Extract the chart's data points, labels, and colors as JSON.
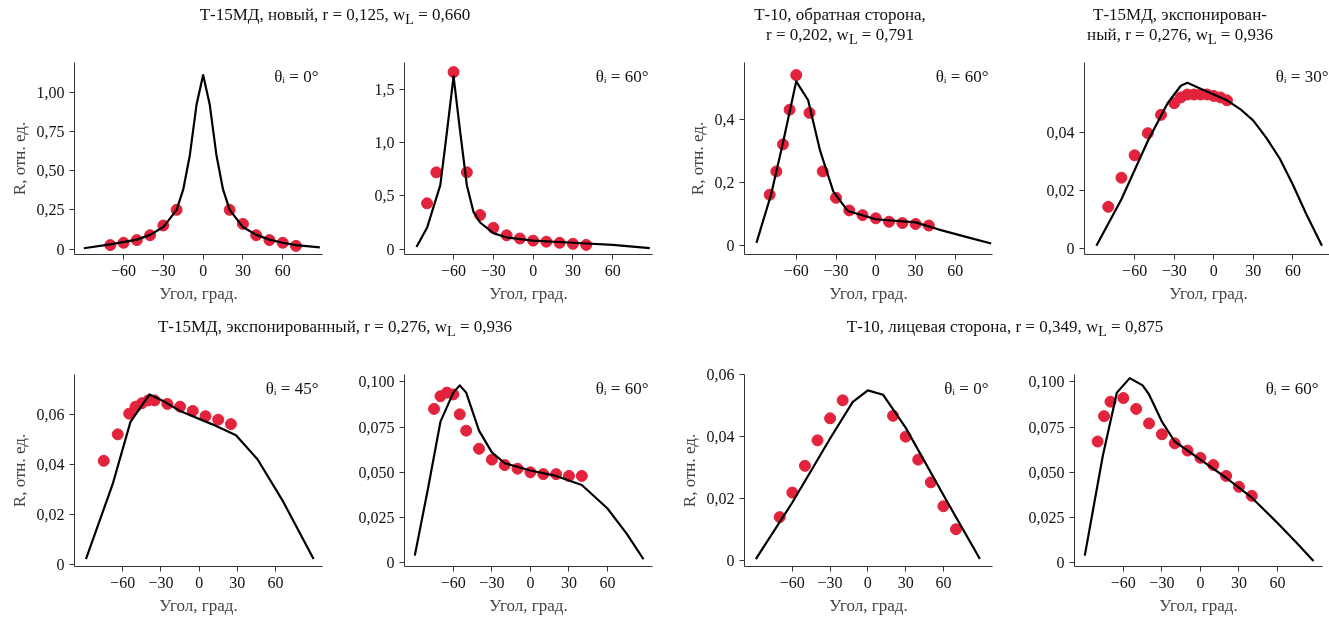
{
  "chart_data": [
    {
      "type": "scatter",
      "title": "Т-15МД, новый, r = 0,125, w$_{L}$ = 0,660",
      "xlabel": "Угол, град.",
      "ylabel": "R, отн. ед.",
      "annotations": [
        "θᵢ = 0°"
      ],
      "marker": "circle",
      "xlim": [
        -97,
        90
      ],
      "ylim": [
        -0.035,
        1.19
      ],
      "xticks": [
        -60,
        -30,
        0,
        30,
        60
      ],
      "yticks": [
        {
          "value": 0,
          "label": "0"
        },
        {
          "value": 0.25,
          "label": "0,25"
        },
        {
          "value": 0.5,
          "label": "0,50"
        },
        {
          "value": 0.75,
          "label": "0,75"
        },
        {
          "value": 1,
          "label": "1,00"
        }
      ],
      "series": [
        {
          "color": "#e2233b",
          "x": [
            -70,
            -60,
            -50,
            -40,
            -30,
            -20,
            20,
            30,
            40,
            50,
            60,
            70
          ],
          "values": [
            0.025,
            0.04,
            0.057,
            0.088,
            0.15,
            0.25,
            0.25,
            0.16,
            0.088,
            0.057,
            0.04,
            0.02
          ]
        },
        {
          "type": "line",
          "marker": "none",
          "color": "#000000",
          "x": [
            -90,
            -70,
            -50,
            -40,
            -30,
            -20,
            -15,
            -10,
            -5,
            0,
            5,
            10,
            15,
            20,
            30,
            40,
            50,
            60,
            70,
            88
          ],
          "values": [
            0.005,
            0.03,
            0.06,
            0.09,
            0.14,
            0.25,
            0.38,
            0.6,
            0.92,
            1.11,
            0.92,
            0.6,
            0.38,
            0.25,
            0.14,
            0.09,
            0.06,
            0.04,
            0.025,
            0.01
          ]
        }
      ]
    },
    {
      "type": "scatter",
      "xlabel": "Угол, град.",
      "annotations": [
        "θᵢ = 60°"
      ],
      "marker": "circle",
      "xlim": [
        -97,
        90
      ],
      "ylim": [
        -0.05,
        1.75
      ],
      "xticks": [
        -60,
        -30,
        0,
        30,
        60
      ],
      "yticks": [
        {
          "value": 0,
          "label": "0"
        },
        {
          "value": 0.5,
          "label": "0,5"
        },
        {
          "value": 1,
          "label": "1,0"
        },
        {
          "value": 1.5,
          "label": "1,5"
        }
      ],
      "series": [
        {
          "color": "#e2233b",
          "x": [
            -80,
            -73,
            -60,
            -50,
            -40,
            -30,
            -20,
            -10,
            0,
            10,
            20,
            30,
            40
          ],
          "values": [
            0.43,
            0.72,
            1.66,
            0.72,
            0.32,
            0.2,
            0.13,
            0.1,
            0.08,
            0.07,
            0.06,
            0.05,
            0.04
          ]
        },
        {
          "type": "line",
          "marker": "none",
          "color": "#000000",
          "x": [
            -88,
            -80,
            -70,
            -65,
            -60,
            -55,
            -50,
            -45,
            -40,
            -30,
            -20,
            0,
            30,
            60,
            88
          ],
          "values": [
            0.02,
            0.2,
            0.6,
            1.1,
            1.62,
            1.1,
            0.6,
            0.35,
            0.25,
            0.15,
            0.11,
            0.08,
            0.06,
            0.04,
            0.01
          ]
        }
      ]
    },
    {
      "type": "scatter",
      "title": "Т-10, обратная сторона,\nr = 0,202, w$_{L}$ = 0,791",
      "xlabel": "Угол, град.",
      "ylabel": "R, отн. ед.",
      "annotations": [
        "θᵢ = 60°"
      ],
      "marker": "circle",
      "xlim": [
        -99,
        88
      ],
      "ylim": [
        -0.03,
        0.58
      ],
      "xticks": [
        -60,
        -30,
        0,
        30,
        60
      ],
      "yticks": [
        {
          "value": 0,
          "label": "0"
        },
        {
          "value": 0.2,
          "label": "0,2"
        },
        {
          "value": 0.4,
          "label": "0,4"
        }
      ],
      "series": [
        {
          "color": "#e2233b",
          "x": [
            -80,
            -75,
            -70,
            -65,
            -60,
            -50,
            -40,
            -30,
            -20,
            -10,
            0,
            10,
            20,
            30,
            40
          ],
          "values": [
            0.16,
            0.234,
            0.32,
            0.43,
            0.54,
            0.42,
            0.234,
            0.15,
            0.11,
            0.095,
            0.085,
            0.074,
            0.07,
            0.067,
            0.062
          ]
        },
        {
          "type": "line",
          "marker": "none",
          "color": "#000000",
          "x": [
            -90,
            -79,
            -70,
            -60,
            -51,
            -42,
            -32,
            -21,
            0,
            30,
            47,
            68,
            87
          ],
          "values": [
            0.007,
            0.16,
            0.325,
            0.52,
            0.46,
            0.3,
            0.17,
            0.108,
            0.082,
            0.072,
            0.05,
            0.026,
            0.005
          ]
        }
      ]
    },
    {
      "type": "scatter",
      "title": "Т-15МД, экспонирован-\nный, r = 0,276, w$_{L}$ = 0,936",
      "xlabel": "Угол, град.",
      "annotations": [
        "θᵢ = 30°"
      ],
      "marker": "circle",
      "xlim": [
        -98,
        90
      ],
      "ylim": [
        -0.002,
        0.064
      ],
      "xticks": [
        -60,
        -30,
        0,
        30,
        60
      ],
      "yticks": [
        {
          "value": 0,
          "label": "0"
        },
        {
          "value": 0.02,
          "label": "0,02"
        },
        {
          "value": 0.04,
          "label": "0,04"
        }
      ],
      "series": [
        {
          "color": "#e2233b",
          "x": [
            -80,
            -70,
            -60,
            -50,
            -40,
            -30,
            -25,
            -20,
            -15,
            -10,
            -5,
            0,
            5,
            10
          ],
          "values": [
            0.0144,
            0.0244,
            0.0321,
            0.0397,
            0.046,
            0.05,
            0.052,
            0.053,
            0.053,
            0.053,
            0.053,
            0.0525,
            0.052,
            0.051
          ]
        },
        {
          "type": "line",
          "marker": "none",
          "color": "#000000",
          "x": [
            -89,
            -70,
            -50,
            -35,
            -25,
            -20,
            -10,
            0,
            10,
            20,
            30,
            40,
            50,
            60,
            70,
            82
          ],
          "values": [
            0.001,
            0.017,
            0.037,
            0.05,
            0.056,
            0.057,
            0.055,
            0.053,
            0.051,
            0.048,
            0.044,
            0.038,
            0.031,
            0.022,
            0.012,
            0.001
          ]
        }
      ]
    },
    {
      "type": "scatter",
      "title": "Т-15МД, экспонированный, r = 0,276, w$_{L}$ = 0,936",
      "xlabel": "Угол, град.",
      "ylabel": "R, отн. ед.",
      "annotations": [
        "θᵢ = 45°"
      ],
      "marker": "circle",
      "xlim": [
        -98,
        97
      ],
      "ylim": [
        -0.001,
        0.076
      ],
      "xticks": [
        -60,
        -30,
        0,
        30,
        60
      ],
      "yticks": [
        {
          "value": 0,
          "label": "0"
        },
        {
          "value": 0.02,
          "label": "0,02"
        },
        {
          "value": 0.04,
          "label": "0,04"
        },
        {
          "value": 0.06,
          "label": "0,06"
        }
      ],
      "series": [
        {
          "color": "#e2233b",
          "x": [
            -75,
            -64,
            -55,
            -50,
            -45,
            -40,
            -35,
            -25,
            -15,
            -5,
            5,
            15,
            25
          ],
          "values": [
            0.0414,
            0.052,
            0.0603,
            0.0631,
            0.0645,
            0.0656,
            0.0656,
            0.0642,
            0.0631,
            0.0614,
            0.0593,
            0.0579,
            0.0561
          ]
        },
        {
          "type": "line",
          "marker": "none",
          "color": "#000000",
          "x": [
            -89,
            -68,
            -54,
            -39,
            -29,
            -15,
            10,
            29,
            46,
            66,
            90
          ],
          "values": [
            0.002,
            0.032,
            0.057,
            0.068,
            0.0656,
            0.0614,
            0.0561,
            0.0516,
            0.0419,
            0.0251,
            0.002
          ]
        }
      ]
    },
    {
      "type": "scatter",
      "xlabel": "Угол, град.",
      "annotations": [
        "θᵢ = 60°"
      ],
      "marker": "circle",
      "xlim": [
        -98,
        95
      ],
      "ylim": [
        -0.002,
        0.104
      ],
      "xticks": [
        -60,
        -30,
        0,
        30,
        60
      ],
      "yticks": [
        0,
        {
          "value": 0.025,
          "label": "0,025"
        },
        {
          "value": 0.05,
          "label": "0,050"
        },
        {
          "value": 0.075,
          "label": "0,075"
        },
        {
          "value": 0.1,
          "label": "0,100"
        }
      ],
      "series": [
        {
          "color": "#e2233b",
          "x": [
            -75,
            -70,
            -65,
            -60,
            -55,
            -50,
            -40,
            -30,
            -20,
            -10,
            0,
            10,
            20,
            30,
            40
          ],
          "values": [
            0.085,
            0.092,
            0.094,
            0.093,
            0.082,
            0.073,
            0.063,
            0.057,
            0.054,
            0.052,
            0.05,
            0.049,
            0.049,
            0.048,
            0.048
          ]
        },
        {
          "type": "line",
          "marker": "none",
          "color": "#000000",
          "x": [
            -90,
            -80,
            -70,
            -60,
            -55,
            -50,
            -40,
            -30,
            -20,
            0,
            20,
            40,
            60,
            75,
            88
          ],
          "values": [
            0.004,
            0.04,
            0.078,
            0.094,
            0.098,
            0.094,
            0.073,
            0.061,
            0.055,
            0.051,
            0.048,
            0.043,
            0.03,
            0.016,
            0.002
          ]
        }
      ]
    },
    {
      "type": "scatter",
      "title": "Т-10, лицевая сторона, r = 0,349, w$_{L}$ = 0,875",
      "xlabel": "Угол, град.",
      "ylabel": "R, отн. ед.",
      "annotations": [
        "θᵢ = 0°"
      ],
      "marker": "circle",
      "xlim": [
        -98,
        99
      ],
      "ylim": [
        -0.0018,
        0.06
      ],
      "xticks": [
        -60,
        -30,
        0,
        30,
        60
      ],
      "yticks": [
        {
          "value": 0,
          "label": "0"
        },
        {
          "value": 0.02,
          "label": "0,02"
        },
        {
          "value": 0.04,
          "label": "0,04"
        },
        {
          "value": 0.06,
          "label": "0,06"
        }
      ],
      "series": [
        {
          "color": "#e2233b",
          "x": [
            -70,
            -60,
            -50,
            -40,
            -30,
            -20,
            20,
            30,
            40,
            50,
            60,
            70
          ],
          "values": [
            0.0141,
            0.022,
            0.0306,
            0.0388,
            0.0459,
            0.0517,
            0.0467,
            0.04,
            0.0326,
            0.0253,
            0.0176,
            0.0102
          ]
        },
        {
          "type": "line",
          "marker": "none",
          "color": "#000000",
          "x": [
            -89,
            -60,
            -30,
            -12,
            0,
            12,
            30,
            60,
            89
          ],
          "values": [
            0.0006,
            0.0188,
            0.0394,
            0.0512,
            0.0549,
            0.0535,
            0.0429,
            0.0212,
            0.0006
          ]
        }
      ]
    },
    {
      "type": "scatter",
      "xlabel": "Угол, град.",
      "annotations": [
        "θᵢ = 60°"
      ],
      "marker": "circle",
      "xlim": [
        -98,
        95
      ],
      "ylim": [
        -0.002,
        0.104
      ],
      "xticks": [
        -60,
        -30,
        0,
        30,
        60
      ],
      "yticks": [
        0,
        {
          "value": 0.025,
          "label": "0,025"
        },
        {
          "value": 0.05,
          "label": "0,050"
        },
        {
          "value": 0.075,
          "label": "0,075"
        },
        {
          "value": 0.1,
          "label": "0,100"
        }
      ],
      "series": [
        {
          "color": "#e2233b",
          "x": [
            -80,
            -75,
            -70,
            -60,
            -50,
            -40,
            -30,
            -20,
            -10,
            0,
            10,
            20,
            30,
            40
          ],
          "values": [
            0.067,
            0.081,
            0.089,
            0.091,
            0.085,
            0.077,
            0.071,
            0.066,
            0.062,
            0.058,
            0.054,
            0.048,
            0.042,
            0.037
          ]
        },
        {
          "type": "line",
          "marker": "none",
          "color": "#000000",
          "x": [
            -90,
            -76,
            -65,
            -55,
            -45,
            -40,
            -30,
            -20,
            0,
            20,
            40,
            60,
            75,
            88
          ],
          "values": [
            0.004,
            0.059,
            0.094,
            0.102,
            0.098,
            0.093,
            0.078,
            0.067,
            0.057,
            0.047,
            0.036,
            0.022,
            0.011,
            0.001
          ]
        }
      ]
    }
  ]
}
